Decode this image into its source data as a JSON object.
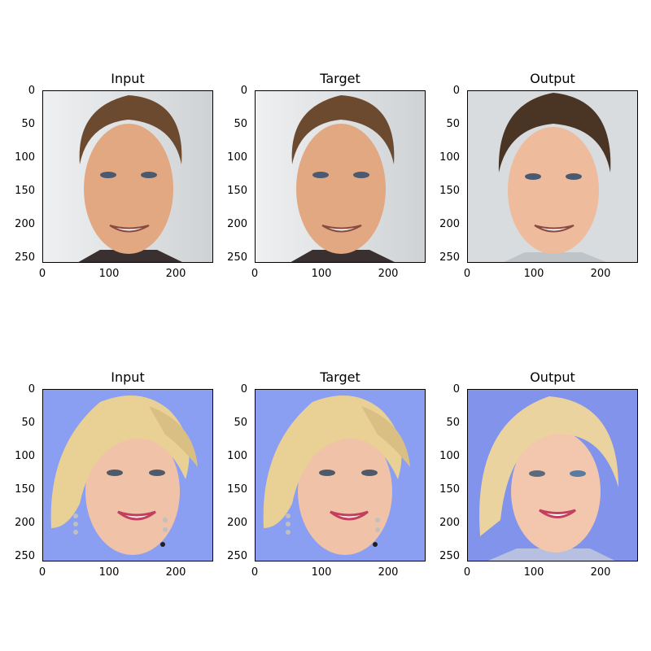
{
  "panel_titles": {
    "input": "Input",
    "target": "Target",
    "output": "Output"
  },
  "axes": {
    "y_ticks": [
      "0",
      "50",
      "100",
      "150",
      "200",
      "250"
    ],
    "x_ticks": [
      "0",
      "100",
      "200"
    ]
  },
  "rows": [
    {
      "subject": "young man with brown hair smiling",
      "background": "#dfe2e4",
      "hair": "#6b4a30",
      "skin": "#e8b08e"
    },
    {
      "subject": "young woman with blonde hair smiling",
      "background": "#8a9ef2",
      "hair": "#e8cf94",
      "skin": "#f0c2a8"
    }
  ]
}
